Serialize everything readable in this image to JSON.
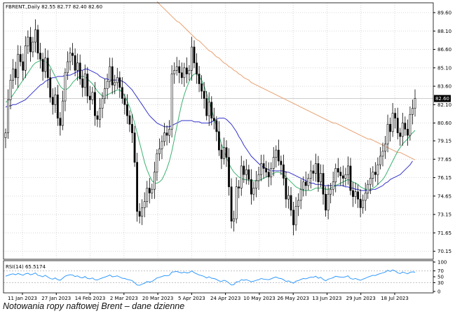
{
  "caption": "Notowania ropy naftowej Brent – dane dzienne",
  "chart_data": [
    {
      "type": "candlestick",
      "header": "FBRENT.,Daily  82.55 82.77 82.40 82.60",
      "last_price_label": "82.60",
      "last_price": 82.6,
      "ylim": [
        69.5,
        90.4
      ],
      "y_ticks": [
        "89.60",
        "88.10",
        "86.60",
        "85.10",
        "83.60",
        "82.10",
        "80.60",
        "79.15",
        "77.65",
        "76.15",
        "74.65",
        "73.15",
        "71.65",
        "70.15"
      ],
      "x_ticks": [
        "11 Jan 2023",
        "27 Jan 2023",
        "14 Feb 2023",
        "2 Mar 2023",
        "20 Mar 2023",
        "5 Apr 2023",
        "24 Apr 2023",
        "10 May 2023",
        "26 May 2023",
        "13 Jun 2023",
        "29 Jun 2023",
        "18 Jul 2023"
      ],
      "grid": true,
      "colors": {
        "up": "#ffffff",
        "down": "#000000",
        "wick": "#000000",
        "ma_fast": "#3cb371",
        "ma_slow": "#3333cc",
        "ma_long": "#e8a070"
      },
      "close": [
        79.8,
        82.5,
        84.1,
        85.0,
        84.3,
        86.2,
        85.6,
        84.9,
        86.9,
        87.6,
        86.4,
        87.2,
        88.2,
        86.3,
        85.8,
        84.8,
        85.9,
        84.3,
        82.7,
        82.1,
        82.9,
        81.0,
        80.4,
        82.4,
        84.7,
        85.6,
        86.3,
        86.1,
        84.9,
        85.5,
        84.2,
        83.5,
        84.6,
        82.8,
        82.5,
        83.1,
        81.2,
        80.9,
        81.8,
        82.6,
        83.4,
        84.0,
        85.2,
        83.7,
        83.9,
        84.3,
        83.5,
        82.6,
        82.1,
        81.2,
        80.5,
        79.8,
        77.4,
        73.4,
        73.0,
        73.7,
        74.2,
        75.3,
        74.9,
        75.2,
        76.6,
        78.1,
        78.5,
        79.1,
        79.8,
        79.6,
        80.1,
        84.6,
        84.9,
        85.2,
        84.7,
        84.3,
        85.1,
        84.6,
        84.9,
        86.8,
        85.5,
        84.6,
        83.8,
        83.2,
        82.6,
        81.2,
        82.3,
        81.0,
        80.8,
        79.9,
        78.4,
        77.7,
        78.6,
        77.8,
        75.4,
        72.6,
        72.8,
        75.4,
        75.3,
        77.1,
        76.4,
        76.8,
        76.0,
        74.8,
        75.3,
        75.9,
        76.4,
        77.3,
        76.9,
        76.6,
        76.2,
        76.9,
        77.8,
        78.4,
        77.5,
        77.2,
        76.1,
        74.4,
        74.7,
        73.5,
        72.3,
        73.8,
        74.3,
        75.2,
        75.8,
        75.5,
        76.1,
        76.7,
        76.5,
        77.3,
        75.8,
        76.5,
        74.8,
        73.5,
        74.8,
        75.2,
        75.8,
        76.9,
        76.6,
        76.3,
        76.1,
        76.4,
        77.1,
        75.1,
        74.6,
        75.0,
        74.4,
        73.7,
        74.3,
        74.9,
        75.6,
        76.1,
        76.6,
        76.4,
        77.2,
        77.9,
        78.3,
        78.9,
        80.5,
        79.9,
        81.4,
        81.0,
        79.8,
        79.5,
        80.6,
        80.1,
        79.6,
        81.3,
        81.8,
        82.6
      ],
      "ma_fast": [
        82.3,
        82.4,
        82.6,
        82.9,
        83.2,
        83.5,
        83.8,
        84.1,
        84.4,
        84.7,
        85.0,
        85.3,
        85.5,
        85.6,
        85.7,
        85.7,
        85.6,
        85.5,
        85.2,
        84.8,
        84.4,
        84.0,
        83.6,
        83.4,
        83.3,
        83.4,
        83.6,
        83.9,
        84.1,
        84.3,
        84.4,
        84.4,
        84.4,
        84.2,
        84.0,
        83.8,
        83.5,
        83.2,
        83.0,
        82.8,
        82.8,
        82.9,
        83.0,
        83.1,
        83.2,
        83.3,
        83.3,
        83.1,
        82.8,
        82.4,
        81.9,
        81.3,
        80.6,
        79.8,
        79.0,
        78.2,
        77.4,
        76.8,
        76.3,
        75.9,
        75.7,
        75.7,
        75.8,
        76.0,
        76.4,
        76.9,
        77.5,
        78.3,
        79.3,
        80.3,
        81.3,
        82.2,
        82.9,
        83.5,
        84.0,
        84.4,
        84.6,
        84.6,
        84.4,
        84.1,
        83.6,
        83.0,
        82.4,
        81.7,
        81.0,
        80.3,
        79.6,
        78.9,
        78.3,
        77.8,
        77.3,
        76.9,
        76.6,
        76.4,
        76.2,
        76.1,
        76.0,
        76.0,
        75.9,
        75.9,
        75.9,
        75.9,
        75.9,
        76.0,
        76.1,
        76.2,
        76.3,
        76.4,
        76.5,
        76.6,
        76.6,
        76.5,
        76.4,
        76.2,
        76.0,
        75.8,
        75.6,
        75.4,
        75.3,
        75.2,
        75.1,
        75.1,
        75.1,
        75.1,
        75.2,
        75.3,
        75.3,
        75.3,
        75.3,
        75.2,
        75.2,
        75.3,
        75.4,
        75.5,
        75.6,
        75.7,
        75.8,
        75.9,
        76.0,
        75.9,
        75.8,
        75.7,
        75.6,
        75.4,
        75.3,
        75.2,
        75.2,
        75.2,
        75.3,
        75.4,
        75.6,
        75.8,
        76.0,
        76.3,
        76.7,
        77.1,
        77.5,
        77.9,
        78.3,
        78.6,
        78.9,
        79.1,
        79.3,
        79.6,
        79.8,
        80.0
      ],
      "ma_slow": [
        81.9,
        82.0,
        82.0,
        82.1,
        82.1,
        82.2,
        82.3,
        82.4,
        82.5,
        82.7,
        82.9,
        83.1,
        83.3,
        83.5,
        83.7,
        83.8,
        84.0,
        84.1,
        84.2,
        84.3,
        84.3,
        84.4,
        84.4,
        84.4,
        84.5,
        84.5,
        84.5,
        84.6,
        84.7,
        84.8,
        84.9,
        84.9,
        85.0,
        85.0,
        84.9,
        84.8,
        84.7,
        84.6,
        84.4,
        84.3,
        84.2,
        84.2,
        84.1,
        84.1,
        84.1,
        84.1,
        84.1,
        84.0,
        83.9,
        83.7,
        83.5,
        83.3,
        83.0,
        82.7,
        82.4,
        82.1,
        81.8,
        81.5,
        81.2,
        81.0,
        80.8,
        80.6,
        80.5,
        80.4,
        80.3,
        80.3,
        80.3,
        80.4,
        80.5,
        80.6,
        80.7,
        80.8,
        80.8,
        80.8,
        80.8,
        80.8,
        80.7,
        80.7,
        80.7,
        80.6,
        80.6,
        80.6,
        80.6,
        80.7,
        80.8,
        80.9,
        81.0,
        81.0,
        81.0,
        80.9,
        80.7,
        80.5,
        80.2,
        79.9,
        79.5,
        79.2,
        78.8,
        78.5,
        78.2,
        77.9,
        77.7,
        77.5,
        77.3,
        77.1,
        77.0,
        76.9,
        76.8,
        76.7,
        76.7,
        76.7,
        76.7,
        76.7,
        76.7,
        76.6,
        76.6,
        76.5,
        76.4,
        76.3,
        76.2,
        76.1,
        76.0,
        75.9,
        75.8,
        75.7,
        75.7,
        75.6,
        75.6,
        75.6,
        75.5,
        75.5,
        75.5,
        75.5,
        75.5,
        75.5,
        75.5,
        75.5,
        75.5,
        75.4,
        75.4,
        75.3,
        75.3,
        75.2,
        75.2,
        75.1,
        75.1,
        75.1,
        75.1,
        75.1,
        75.2,
        75.2,
        75.3,
        75.4,
        75.5,
        75.7,
        75.8,
        76.0,
        76.1,
        76.2,
        76.3,
        76.4,
        76.6,
        76.8,
        77.0,
        77.2,
        77.5
      ],
      "ma_long_visible_from_index": 61,
      "ma_long": [
        90.5,
        90.3,
        90.1,
        89.9,
        89.7,
        89.5,
        89.3,
        89.1,
        88.9,
        88.8,
        88.6,
        88.4,
        88.2,
        88.0,
        87.8,
        87.6,
        87.4,
        87.3,
        87.1,
        86.9,
        86.7,
        86.5,
        86.4,
        86.2,
        86.0,
        85.9,
        85.7,
        85.5,
        85.4,
        85.2,
        85.1,
        84.9,
        84.8,
        84.6,
        84.5,
        84.3,
        84.2,
        84.1,
        83.9,
        83.8,
        83.7,
        83.6,
        83.5,
        83.4,
        83.3,
        83.2,
        83.1,
        83.0,
        82.9,
        82.8,
        82.7,
        82.6,
        82.5,
        82.4,
        82.3,
        82.2,
        82.1,
        82.0,
        81.9,
        81.8,
        81.7,
        81.6,
        81.5,
        81.4,
        81.3,
        81.2,
        81.1,
        81.0,
        80.9,
        80.8,
        80.7,
        80.6,
        80.6,
        80.5,
        80.4,
        80.3,
        80.2,
        80.1,
        80.0,
        79.9,
        79.8,
        79.7,
        79.6,
        79.5,
        79.4,
        79.3,
        79.3,
        79.2,
        79.1,
        79.0,
        78.9,
        78.8,
        78.7,
        78.6,
        78.5,
        78.4,
        78.3,
        78.2,
        78.2,
        78.1,
        78.0,
        77.9,
        77.8,
        77.7,
        77.6,
        77.6,
        77.5
      ]
    },
    {
      "type": "line",
      "header": "RSI(14) 65.5174",
      "ylim": [
        0,
        100
      ],
      "y_ticks": [
        "100",
        "70",
        "50",
        "30",
        "0"
      ],
      "levels": [
        30,
        70
      ],
      "color": "#1e90ff",
      "values": [
        52,
        55,
        58,
        60,
        57,
        61,
        58,
        55,
        60,
        62,
        57,
        59,
        63,
        55,
        53,
        50,
        55,
        49,
        44,
        42,
        46,
        40,
        38,
        45,
        52,
        55,
        57,
        56,
        51,
        53,
        48,
        46,
        51,
        44,
        43,
        46,
        40,
        39,
        43,
        46,
        49,
        52,
        56,
        50,
        51,
        53,
        49,
        45,
        44,
        41,
        39,
        37,
        30,
        22,
        21,
        25,
        28,
        34,
        32,
        34,
        40,
        46,
        48,
        51,
        54,
        53,
        55,
        66,
        67,
        68,
        65,
        63,
        66,
        63,
        64,
        70,
        64,
        60,
        56,
        54,
        51,
        46,
        50,
        45,
        44,
        41,
        36,
        34,
        38,
        35,
        29,
        22,
        23,
        33,
        33,
        40,
        38,
        40,
        37,
        33,
        35,
        38,
        40,
        44,
        42,
        41,
        40,
        43,
        47,
        49,
        45,
        44,
        40,
        34,
        36,
        32,
        28,
        35,
        37,
        41,
        44,
        43,
        46,
        49,
        48,
        52,
        45,
        48,
        41,
        36,
        42,
        44,
        47,
        52,
        50,
        49,
        48,
        50,
        53,
        44,
        42,
        44,
        41,
        38,
        42,
        45,
        49,
        52,
        55,
        54,
        58,
        61,
        63,
        66,
        72,
        68,
        73,
        70,
        63,
        61,
        66,
        63,
        60,
        65,
        67,
        65.5
      ]
    }
  ]
}
